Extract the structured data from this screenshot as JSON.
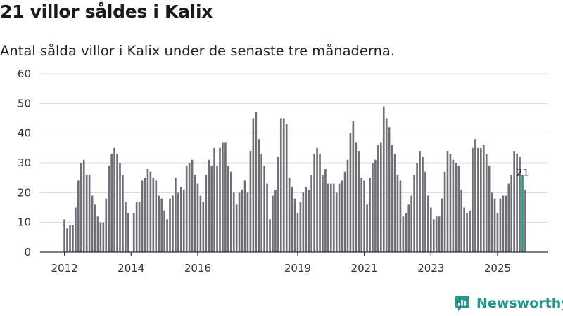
{
  "title": "21 villor såldes i Kalix",
  "subtitle": "Antal sålda villor i Kalix under de senaste tre månaderna.",
  "brand": {
    "name": "Newsworthy",
    "icon": "newsworthy-logo-icon",
    "color": "#27968f"
  },
  "colors": {
    "bar": "#6e6e74",
    "highlight": "#25958f",
    "grid": "#d9d9d9",
    "axis": "#333333"
  },
  "chart_data": {
    "type": "bar",
    "title": "21 villor såldes i Kalix",
    "subtitle": "Antal sålda villor i Kalix under de senaste tre månaderna.",
    "xlabel": "",
    "ylabel": "",
    "ylim": [
      0,
      60
    ],
    "yticks": [
      0,
      10,
      20,
      30,
      40,
      50,
      60
    ],
    "grid": true,
    "x_start": "2012-01",
    "x_end": "2025-10",
    "x_tick_labels": [
      {
        "label": "2012",
        "x": "2012-01"
      },
      {
        "label": "2014",
        "x": "2014-01"
      },
      {
        "label": "2016",
        "x": "2016-01"
      },
      {
        "label": "2019",
        "x": "2019-01"
      },
      {
        "label": "2021",
        "x": "2021-01"
      },
      {
        "label": "2023",
        "x": "2023-01"
      },
      {
        "label": "2025",
        "x": "2025-01"
      }
    ],
    "values": [
      11,
      8,
      9,
      9,
      15,
      24,
      30,
      31,
      26,
      26,
      19,
      16,
      12,
      10,
      10,
      18,
      29,
      33,
      35,
      33,
      30,
      26,
      17,
      13,
      null,
      13,
      17,
      17,
      24,
      25,
      28,
      27,
      25,
      24,
      19,
      18,
      14,
      11,
      18,
      19,
      25,
      20,
      22,
      21,
      29,
      30,
      31,
      26,
      23,
      19,
      17,
      26,
      31,
      29,
      35,
      29,
      35,
      37,
      37,
      29,
      27,
      20,
      16,
      20,
      21,
      24,
      20,
      34,
      45,
      47,
      38,
      33,
      29,
      23,
      11,
      19,
      21,
      32,
      45,
      45,
      43,
      25,
      22,
      18,
      13,
      17,
      20,
      22,
      21,
      26,
      33,
      35,
      33,
      26,
      28,
      23,
      23,
      23,
      20,
      23,
      24,
      27,
      31,
      40,
      44,
      37,
      34,
      25,
      24,
      16,
      25,
      30,
      31,
      36,
      37,
      49,
      45,
      42,
      36,
      33,
      26,
      24,
      12,
      13,
      16,
      19,
      26,
      30,
      34,
      32,
      27,
      19,
      15,
      11,
      12,
      12,
      18,
      27,
      34,
      33,
      31,
      30,
      29,
      21,
      15,
      13,
      14,
      35,
      38,
      35,
      35,
      36,
      33,
      29,
      20,
      18,
      13,
      18,
      19,
      19,
      23,
      26,
      34,
      33,
      32,
      26,
      21
    ],
    "highlight": {
      "x": "2025-10",
      "value": 21,
      "label": "21"
    }
  }
}
